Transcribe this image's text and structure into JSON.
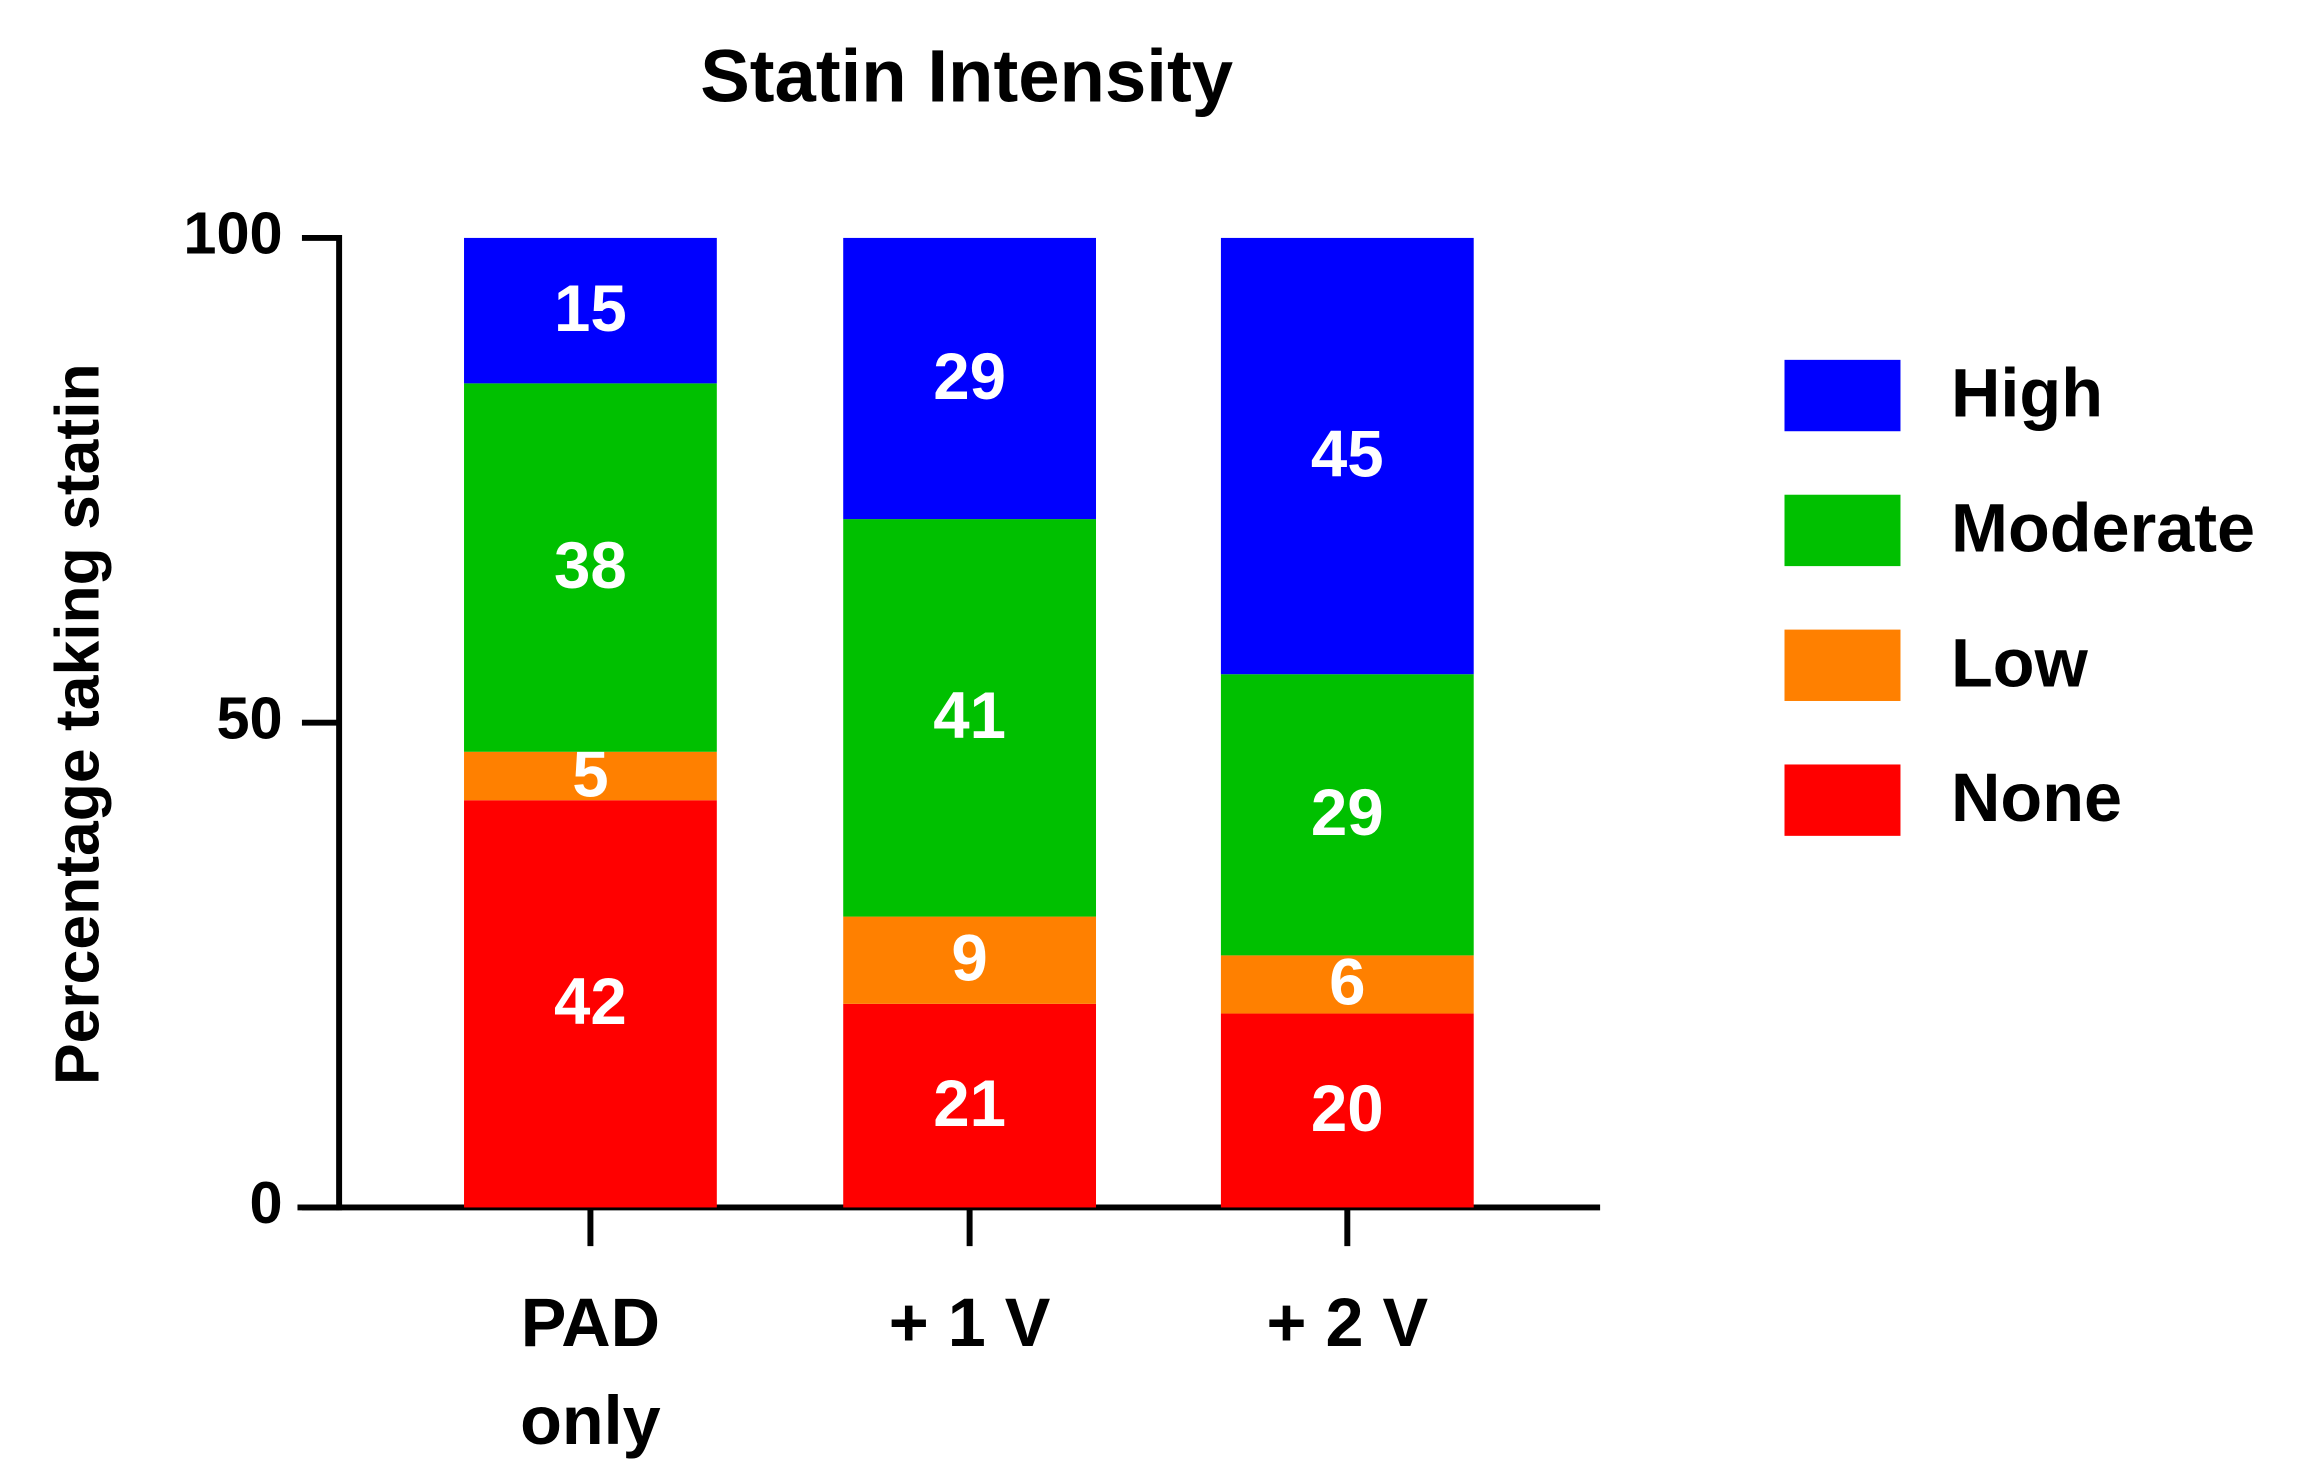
{
  "chart_data": {
    "type": "stacked_bar",
    "title": "Statin Intensity",
    "y_label": "Percentage taking statin",
    "categories": [
      "PAD only",
      "+ 1 V",
      "+ 2 V"
    ],
    "series": [
      {
        "name": "None",
        "color": "#ff0000",
        "values": [
          42,
          21,
          20
        ]
      },
      {
        "name": "Low",
        "color": "#ff8000",
        "values": [
          5,
          9,
          6
        ]
      },
      {
        "name": "Moderate",
        "color": "#00c000",
        "values": [
          38,
          41,
          29
        ]
      },
      {
        "name": "High",
        "color": "#0000ff",
        "values": [
          15,
          29,
          45
        ]
      }
    ],
    "ylim": [
      0,
      100
    ],
    "yticks": [
      0,
      50,
      100
    ],
    "legend": "right"
  }
}
